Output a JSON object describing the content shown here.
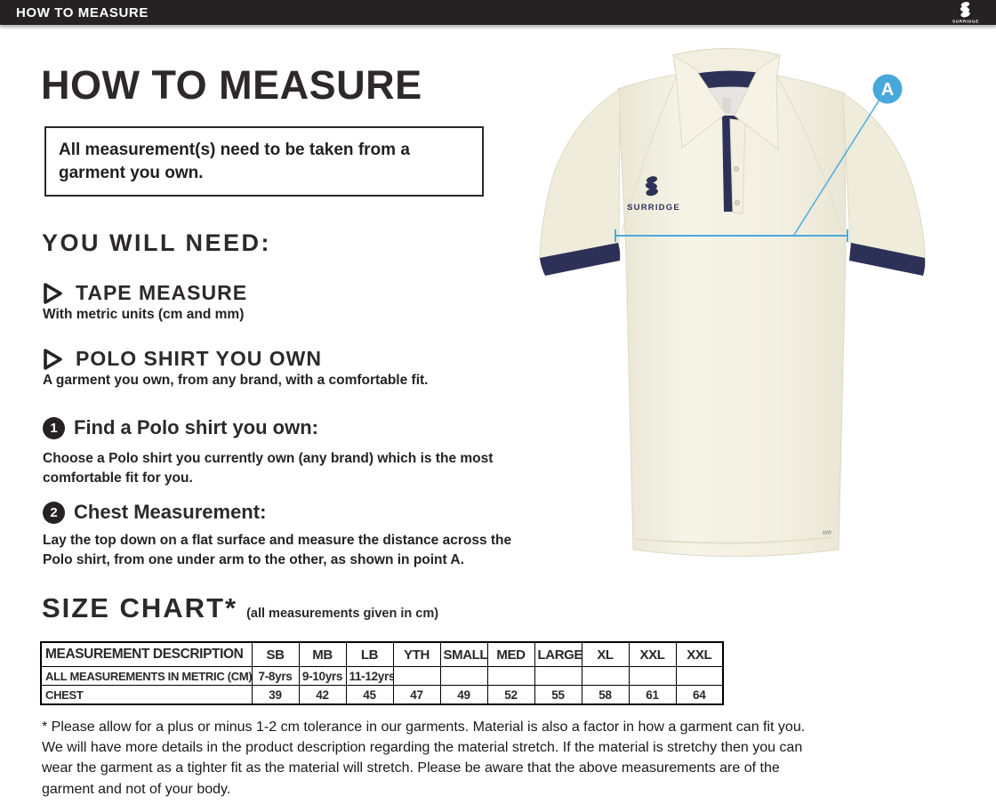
{
  "topbar": {
    "title": "HOW TO MEASURE",
    "brand": "SURRIDGE"
  },
  "heading": "HOW TO MEASURE",
  "notice": "All measurement(s) need to be taken from a garment you own.",
  "you_will_need": {
    "heading": "YOU WILL NEED:",
    "items": [
      {
        "title": "TAPE MEASURE",
        "desc": "With metric units (cm and mm)"
      },
      {
        "title": "POLO SHIRT YOU OWN",
        "desc": "A garment you own, from any brand, with a comfortable fit."
      }
    ]
  },
  "steps": [
    {
      "num": "1",
      "title": "Find a Polo shirt you own:",
      "desc": "Choose a Polo shirt you currently own (any brand) which is the most comfortable fit for you."
    },
    {
      "num": "2",
      "title": "Chest Measurement:",
      "desc": "Lay the top down on a flat surface and measure the distance across the Polo shirt, from one under arm to the other, as shown in point A."
    }
  ],
  "size_chart": {
    "heading": "SIZE CHART*",
    "subheading": "(all measurements given in cm)",
    "columns": [
      "MEASUREMENT DESCRIPTION",
      "SB",
      "MB",
      "LB",
      "YTH",
      "SMALL",
      "MED",
      "LARGE",
      "XL",
      "XXL",
      "XXL"
    ],
    "rows": [
      {
        "label": "ALL MEASUREMENTS IN METRIC (CM)",
        "values": [
          "7-8yrs",
          "9-10yrs",
          "11-12yrs",
          "",
          "",
          "",
          "",
          "",
          "",
          ""
        ]
      },
      {
        "label": "CHEST",
        "values": [
          "39",
          "42",
          "45",
          "47",
          "49",
          "52",
          "55",
          "58",
          "61",
          "64"
        ]
      }
    ]
  },
  "footnote": "* Please allow for a plus or minus 1-2 cm tolerance in our garments. Material is also a factor in how a garment can fit you. We will have more details in the product description regarding the material stretch.  If the material is stretchy then you can wear the garment as a tighter fit as the material will stretch.  Please be aware that the above measurements are of the garment and not of your body.",
  "diagram": {
    "marker_label": "A",
    "chest_logo": "SURRIDGE"
  },
  "colors": {
    "accent_blue": "#4AA8D8",
    "navy": "#2D3157",
    "bar_dark": "#262223",
    "shirt_cream": "#F2EFE0"
  }
}
